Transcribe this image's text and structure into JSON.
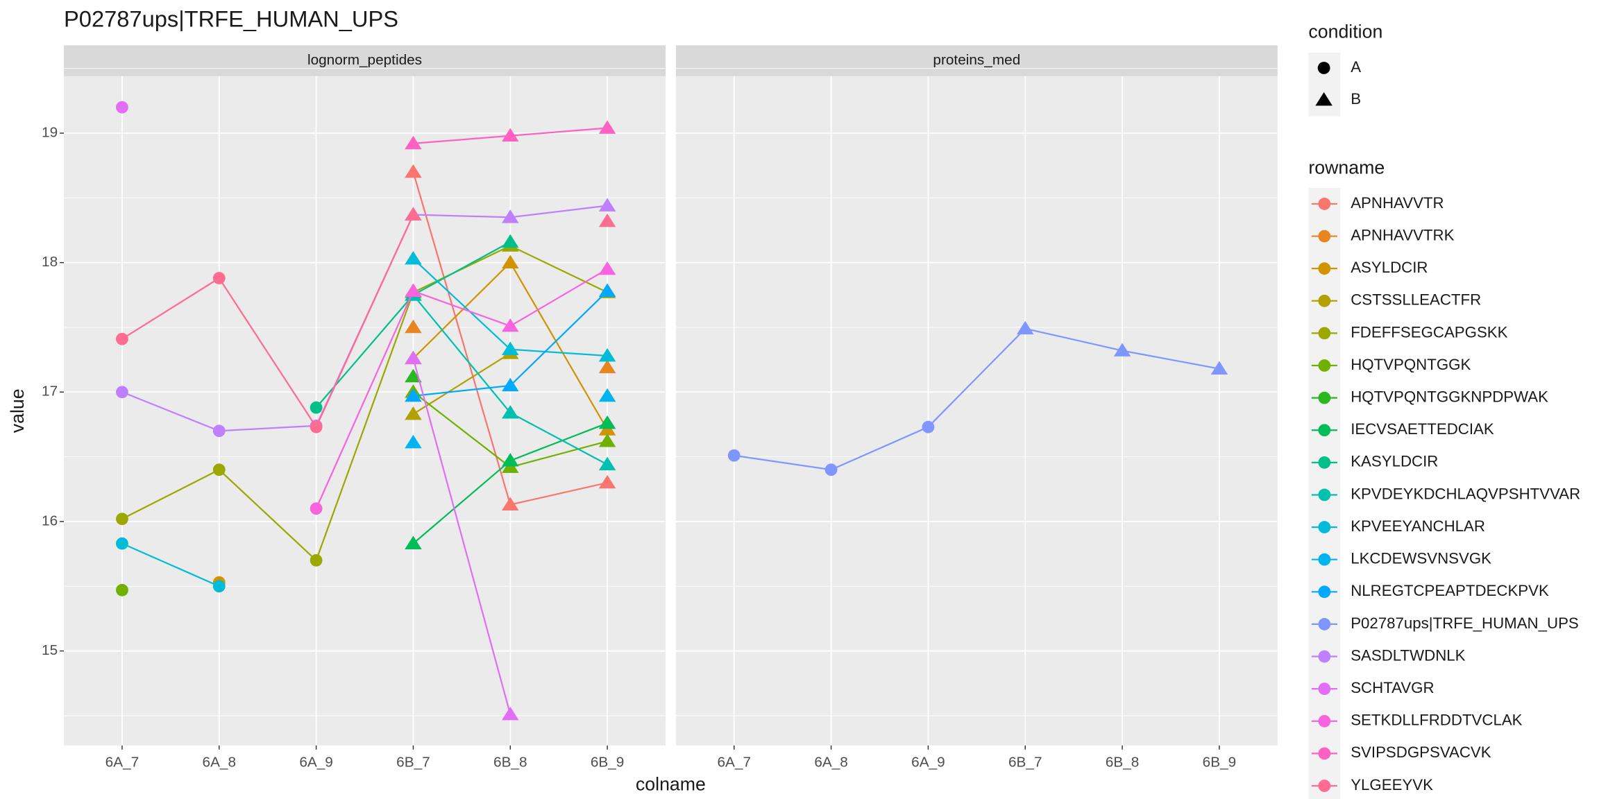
{
  "chart_data": {
    "type": "line",
    "title": "P02787ups|TRFE_HUMAN_UPS",
    "x_label": "colname",
    "y_label": "value",
    "facets": [
      "lognorm_peptides",
      "proteins_med"
    ],
    "categories": [
      "6A_7",
      "6A_8",
      "6A_9",
      "6B_7",
      "6B_8",
      "6B_9"
    ],
    "condition_title": "condition",
    "conditions": [
      "A",
      "B"
    ],
    "condition_shapes": [
      "circle",
      "triangle"
    ],
    "category_condition": [
      0,
      0,
      0,
      1,
      1,
      1
    ],
    "legend_title": "rowname",
    "ylim": [
      14.27,
      19.44
    ],
    "yticks": [
      15,
      16,
      17,
      18,
      19
    ],
    "grid": true,
    "series": [
      {
        "name": "APNHAVVTR",
        "color": "#F8766D",
        "values": [
          [
            null,
            null,
            null,
            18.7,
            16.13,
            16.3
          ],
          [
            null,
            null,
            null,
            null,
            null,
            null
          ]
        ]
      },
      {
        "name": "APNHAVVTRK",
        "color": "#E7851E",
        "values": [
          [
            null,
            null,
            null,
            17.5,
            null,
            17.19
          ],
          [
            null,
            null,
            null,
            null,
            null,
            null
          ]
        ]
      },
      {
        "name": "ASYLDCIR",
        "color": "#D09400",
        "values": [
          [
            null,
            15.53,
            null,
            17.26,
            18.0,
            16.71
          ],
          [
            null,
            null,
            null,
            null,
            null,
            null
          ]
        ]
      },
      {
        "name": "CSTSSLLEACTFR",
        "color": "#B2A100",
        "values": [
          [
            null,
            null,
            null,
            16.83,
            17.3,
            null
          ],
          [
            null,
            null,
            null,
            null,
            null,
            null
          ]
        ]
      },
      {
        "name": "FDEFFSEGCAPGSKK",
        "color": "#9AA800",
        "values": [
          [
            16.02,
            16.4,
            15.7,
            17.77,
            18.13,
            17.77
          ],
          [
            null,
            null,
            null,
            null,
            null,
            null
          ]
        ]
      },
      {
        "name": "HQTVPQNTGGK",
        "color": "#6FB000",
        "values": [
          [
            15.47,
            null,
            null,
            17.0,
            16.42,
            16.62
          ],
          [
            null,
            null,
            null,
            null,
            null,
            null
          ]
        ]
      },
      {
        "name": "HQTVPQNTGGKNPDPWAK",
        "color": "#2AB71F",
        "values": [
          [
            null,
            null,
            null,
            17.12,
            null,
            null
          ],
          [
            null,
            null,
            null,
            null,
            null,
            null
          ]
        ]
      },
      {
        "name": "IECVSAETTEDCIAK",
        "color": "#00BC59",
        "values": [
          [
            null,
            null,
            null,
            15.83,
            16.47,
            16.76
          ],
          [
            null,
            null,
            null,
            null,
            null,
            null
          ]
        ]
      },
      {
        "name": "KASYLDCIR",
        "color": "#00BF87",
        "values": [
          [
            null,
            null,
            16.88,
            17.75,
            18.16,
            null
          ],
          [
            null,
            null,
            null,
            null,
            null,
            null
          ]
        ]
      },
      {
        "name": "KPVDEYKDCHLAQVPSHTVVAR",
        "color": "#00C0AF",
        "values": [
          [
            null,
            null,
            null,
            17.75,
            16.84,
            16.44
          ],
          [
            null,
            null,
            null,
            null,
            null,
            null
          ]
        ]
      },
      {
        "name": "KPVEEYANCHLAR",
        "color": "#00BCD8",
        "values": [
          [
            15.83,
            15.5,
            null,
            18.03,
            17.33,
            17.28
          ],
          [
            null,
            null,
            null,
            null,
            null,
            null
          ]
        ]
      },
      {
        "name": "LKCDEWSVNSVGK",
        "color": "#00B4EF",
        "values": [
          [
            null,
            null,
            null,
            16.61,
            null,
            16.97
          ],
          [
            null,
            null,
            null,
            null,
            null,
            null
          ]
        ]
      },
      {
        "name": "NLREGTCPEAPTDECKPVK",
        "color": "#00A9FF",
        "values": [
          [
            null,
            null,
            null,
            16.97,
            17.05,
            17.78
          ],
          [
            null,
            null,
            null,
            null,
            null,
            null
          ]
        ]
      },
      {
        "name": "P02787ups|TRFE_HUMAN_UPS",
        "color": "#7F96FF",
        "values": [
          [
            null,
            null,
            null,
            null,
            null,
            null
          ],
          [
            16.51,
            16.4,
            16.73,
            17.49,
            17.32,
            17.18
          ]
        ]
      },
      {
        "name": "SASDLTWDNLK",
        "color": "#BF80FF",
        "values": [
          [
            17.0,
            16.7,
            16.74,
            18.37,
            18.35,
            18.44
          ],
          [
            null,
            null,
            null,
            null,
            null,
            null
          ]
        ]
      },
      {
        "name": "SCHTAVGR",
        "color": "#E36EF6",
        "values": [
          [
            19.2,
            null,
            null,
            17.26,
            14.51,
            null
          ],
          [
            null,
            null,
            null,
            null,
            null,
            null
          ]
        ]
      },
      {
        "name": "SETKDLLFRDDTVCLAK",
        "color": "#F863DF",
        "values": [
          [
            null,
            null,
            16.1,
            17.78,
            17.51,
            17.95
          ],
          [
            null,
            null,
            null,
            null,
            null,
            null
          ]
        ]
      },
      {
        "name": "SVIPSDGPSVACVK",
        "color": "#FF61C3",
        "values": [
          [
            null,
            null,
            null,
            18.92,
            18.98,
            19.04
          ],
          [
            null,
            null,
            null,
            null,
            null,
            null
          ]
        ]
      },
      {
        "name": "YLGEEYVK",
        "color": "#FF6C91",
        "values": [
          [
            17.41,
            17.88,
            16.73,
            18.37,
            null,
            18.32
          ],
          [
            null,
            null,
            null,
            null,
            null,
            null
          ]
        ]
      }
    ]
  }
}
